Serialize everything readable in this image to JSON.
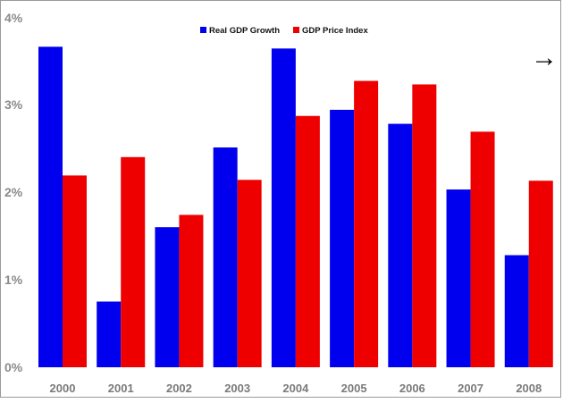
{
  "chart_data": {
    "type": "bar",
    "title": "",
    "xlabel": "",
    "ylabel": "",
    "categories": [
      "2000",
      "2001",
      "2002",
      "2003",
      "2004",
      "2005",
      "2006",
      "2007",
      "2008"
    ],
    "series": [
      {
        "name": "Real GDP Growth",
        "color": "#0000ee",
        "values": [
          3.66,
          0.75,
          1.6,
          2.51,
          3.64,
          2.94,
          2.78,
          2.03,
          1.28
        ]
      },
      {
        "name": "GDP Price Index",
        "color": "#ee0000",
        "values": [
          2.19,
          2.4,
          1.74,
          2.14,
          2.87,
          3.27,
          3.23,
          2.69,
          2.13
        ]
      }
    ],
    "ylim": [
      0,
      4
    ],
    "yticks": [
      {
        "value": 0,
        "label": "0%"
      },
      {
        "value": 1,
        "label": "1%"
      },
      {
        "value": 2,
        "label": "2%"
      },
      {
        "value": 3,
        "label": "3%"
      },
      {
        "value": 4,
        "label": "4%"
      }
    ],
    "grid": false,
    "legend_position": "top-center"
  },
  "decor": {
    "arrow_icon": "arrow-right-icon",
    "arrow_glyph": "→"
  }
}
